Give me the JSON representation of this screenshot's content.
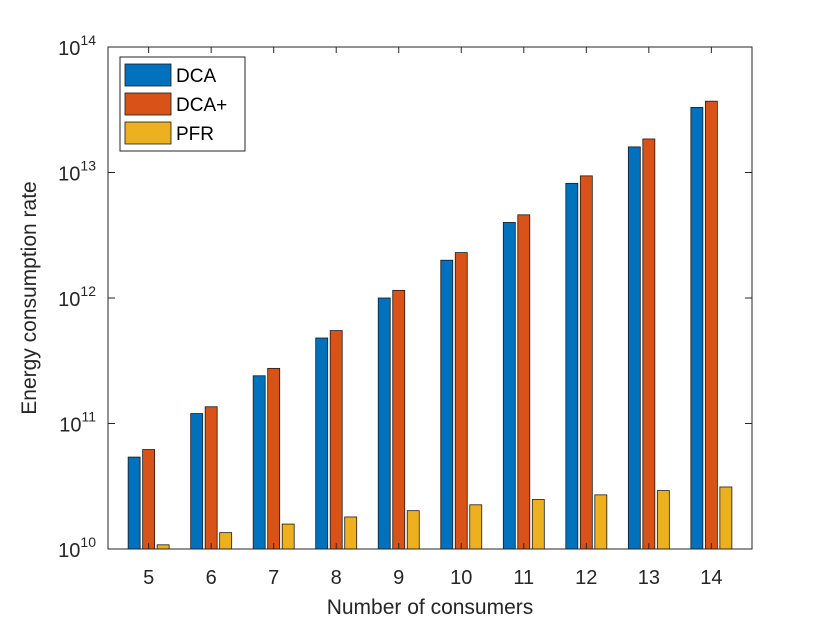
{
  "chart_data": {
    "type": "bar",
    "title": "",
    "xlabel": "Number of consumers",
    "ylabel": "Energy consumption rate",
    "yscale": "log",
    "ylim": [
      10000000000.0,
      100000000000000.0
    ],
    "grid": false,
    "legend_position": "top-left",
    "categories": [
      "5",
      "6",
      "7",
      "8",
      "9",
      "10",
      "11",
      "12",
      "13",
      "14"
    ],
    "y_ticks": [
      {
        "base": "10",
        "exp": "10",
        "value": 10000000000.0
      },
      {
        "base": "10",
        "exp": "11",
        "value": 100000000000.0
      },
      {
        "base": "10",
        "exp": "12",
        "value": 1000000000000.0
      },
      {
        "base": "10",
        "exp": "13",
        "value": 10000000000000.0
      },
      {
        "base": "10",
        "exp": "14",
        "value": 100000000000000.0
      }
    ],
    "series": [
      {
        "name": "DCA",
        "color": "#0072BD",
        "values": [
          54000000000.0,
          120000000000.0,
          240000000000.0,
          480000000000.0,
          1000000000000.0,
          2000000000000.0,
          4000000000000.0,
          8200000000000.0,
          16000000000000.0,
          33000000000000.0
        ]
      },
      {
        "name": "DCA+",
        "color": "#D95319",
        "values": [
          62000000000.0,
          136000000000.0,
          275000000000.0,
          550000000000.0,
          1150000000000.0,
          2300000000000.0,
          4600000000000.0,
          9400000000000.0,
          18500000000000.0,
          37000000000000.0
        ]
      },
      {
        "name": "PFR",
        "color": "#EDB120",
        "values": [
          10800000000.0,
          13500000000.0,
          15800000000.0,
          18000000000.0,
          20200000000.0,
          22500000000.0,
          24800000000.0,
          27000000000.0,
          29200000000.0,
          31200000000.0
        ]
      }
    ]
  }
}
